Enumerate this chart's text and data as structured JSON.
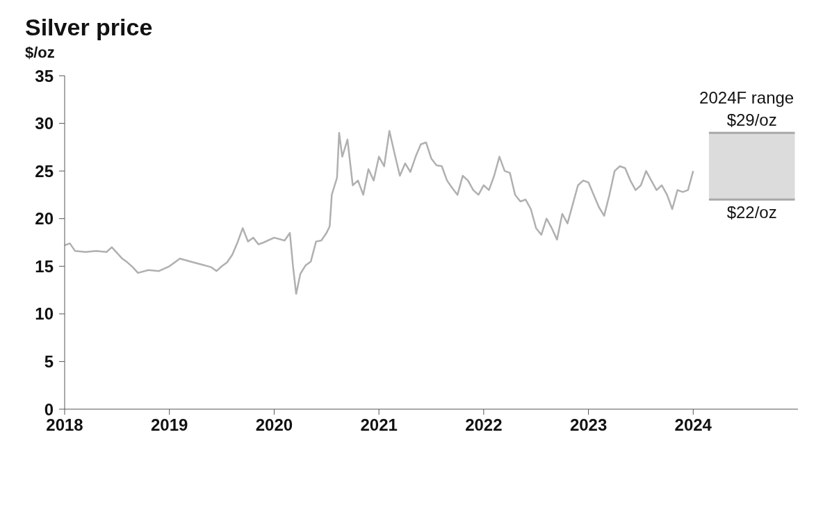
{
  "chart_data": {
    "type": "line",
    "title": "Silver price",
    "ylabel": "$/oz",
    "x": [
      2018.0,
      2018.05,
      2018.1,
      2018.2,
      2018.3,
      2018.4,
      2018.45,
      2018.5,
      2018.55,
      2018.6,
      2018.65,
      2018.7,
      2018.8,
      2018.9,
      2019.0,
      2019.1,
      2019.2,
      2019.3,
      2019.4,
      2019.45,
      2019.5,
      2019.55,
      2019.6,
      2019.65,
      2019.7,
      2019.75,
      2019.8,
      2019.85,
      2019.9,
      2020.0,
      2020.1,
      2020.15,
      2020.18,
      2020.21,
      2020.25,
      2020.3,
      2020.35,
      2020.4,
      2020.45,
      2020.5,
      2020.53,
      2020.55,
      2020.6,
      2020.62,
      2020.65,
      2020.7,
      2020.75,
      2020.8,
      2020.85,
      2020.9,
      2020.95,
      2021.0,
      2021.05,
      2021.1,
      2021.15,
      2021.2,
      2021.25,
      2021.3,
      2021.35,
      2021.4,
      2021.45,
      2021.5,
      2021.55,
      2021.6,
      2021.65,
      2021.7,
      2021.75,
      2021.8,
      2021.85,
      2021.9,
      2021.95,
      2022.0,
      2022.05,
      2022.1,
      2022.15,
      2022.2,
      2022.25,
      2022.3,
      2022.35,
      2022.4,
      2022.45,
      2022.5,
      2022.55,
      2022.6,
      2022.65,
      2022.7,
      2022.75,
      2022.8,
      2022.85,
      2022.9,
      2022.95,
      2023.0,
      2023.05,
      2023.1,
      2023.15,
      2023.2,
      2023.25,
      2023.3,
      2023.35,
      2023.4,
      2023.45,
      2023.5,
      2023.55,
      2023.6,
      2023.65,
      2023.7,
      2023.75,
      2023.8,
      2023.85,
      2023.9,
      2023.95,
      2024.0
    ],
    "series": [
      {
        "color": "#b0b0b0",
        "values": [
          17.2,
          17.4,
          16.6,
          16.5,
          16.6,
          16.5,
          17.0,
          16.4,
          15.8,
          15.4,
          14.9,
          14.3,
          14.6,
          14.5,
          15.0,
          15.8,
          15.5,
          15.2,
          14.9,
          14.5,
          15.0,
          15.4,
          16.2,
          17.5,
          19.0,
          17.6,
          18.0,
          17.3,
          17.5,
          18.0,
          17.7,
          18.5,
          15.0,
          12.1,
          14.2,
          15.1,
          15.5,
          17.6,
          17.7,
          18.5,
          19.2,
          22.5,
          24.3,
          29.0,
          26.5,
          28.3,
          23.5,
          24.0,
          22.5,
          25.2,
          24.0,
          26.5,
          25.5,
          29.2,
          26.8,
          24.5,
          25.8,
          24.9,
          26.5,
          27.8,
          28.0,
          26.3,
          25.6,
          25.5,
          24.0,
          23.2,
          22.5,
          24.5,
          24.0,
          23.0,
          22.5,
          23.5,
          23.0,
          24.5,
          26.5,
          25.0,
          24.8,
          22.5,
          21.8,
          22.0,
          21.0,
          19.0,
          18.3,
          20.0,
          19.0,
          17.8,
          20.5,
          19.5,
          21.5,
          23.5,
          24.0,
          23.8,
          22.5,
          21.2,
          20.3,
          22.5,
          25.0,
          25.5,
          25.3,
          24.0,
          23.0,
          23.5,
          25.0,
          24.0,
          23.0,
          23.5,
          22.5,
          21.0,
          23.0,
          22.8,
          23.0,
          25.0
        ]
      }
    ],
    "xlim": [
      2018,
      2025
    ],
    "xticks": [
      2018,
      2019,
      2020,
      2021,
      2022,
      2023,
      2024
    ],
    "ylim": [
      0,
      35
    ],
    "yticks": [
      0,
      5,
      10,
      15,
      20,
      25,
      30,
      35
    ],
    "grid": false,
    "legend": false,
    "marker": "none",
    "line_style": "solid",
    "bands": [
      {
        "axis": "y",
        "from": 22,
        "to": 29,
        "label": "2024F range",
        "color": "#dcdcdc"
      }
    ],
    "annotations": [
      {
        "text": "$29/oz",
        "y": 29
      },
      {
        "text": "$22/oz",
        "y": 22
      }
    ]
  }
}
